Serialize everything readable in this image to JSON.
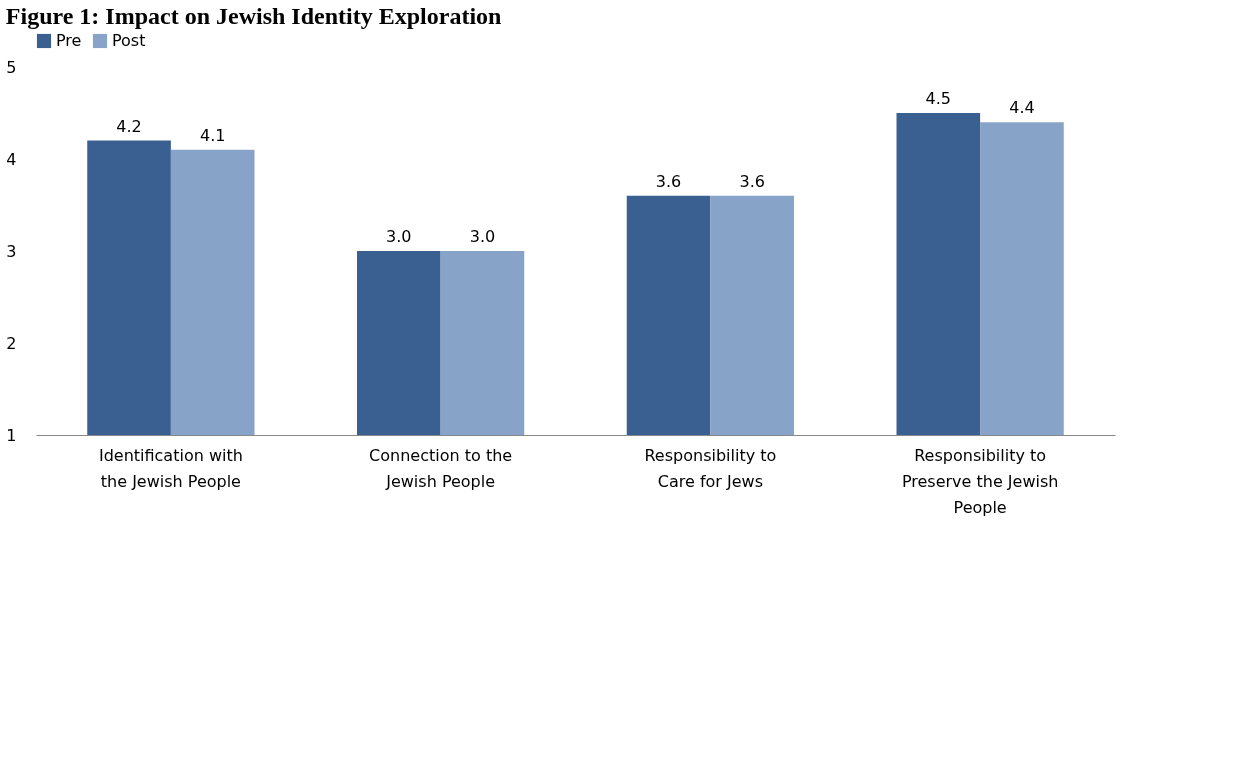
{
  "chart_data": {
    "type": "bar",
    "title": "Figure 1: Impact on Jewish Identity Exploration",
    "categories": [
      "Identification with the Jewish People",
      "Connection to the Jewish People",
      "Responsibility to Care for Jews",
      "Responsibility to Preserve the Jewish People"
    ],
    "series": [
      {
        "name": "Pre",
        "color": "#3a5f91",
        "values": [
          4.2,
          3.0,
          3.6,
          4.5
        ],
        "value_labels": [
          "4.2",
          "3.0",
          "3.6",
          "4.5"
        ]
      },
      {
        "name": "Post",
        "color": "#88a3c8",
        "values": [
          4.1,
          3.0,
          3.6,
          4.4
        ],
        "value_labels": [
          "4.1",
          "3.0",
          "3.6",
          "4.4"
        ]
      }
    ],
    "ylim": [
      1,
      5
    ],
    "yticks": [
      1,
      2,
      3,
      4,
      5
    ],
    "grid": false,
    "legend": "top"
  }
}
